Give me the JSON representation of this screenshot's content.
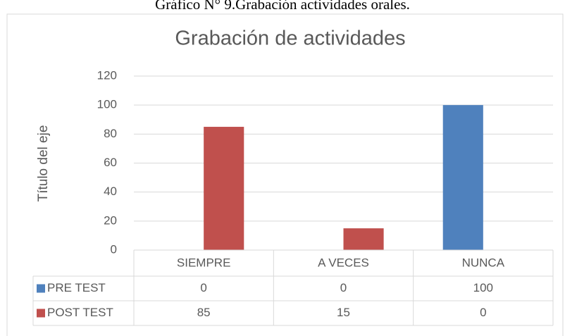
{
  "caption": "Gráfico N° 9.Grabación actividades orales.",
  "chart_data": {
    "type": "bar",
    "title": "Grabación de actividades",
    "y_label": "Título del eje",
    "categories": [
      "SIEMPRE",
      "A VECES",
      "NUNCA"
    ],
    "series": [
      {
        "name": "PRE TEST",
        "color": "#4f81bd",
        "values": [
          0,
          0,
          100
        ]
      },
      {
        "name": "POST TEST",
        "color": "#c0504d",
        "values": [
          85,
          15,
          0
        ]
      }
    ],
    "ylim": [
      0,
      120
    ],
    "yticks": [
      0,
      20,
      40,
      60,
      80,
      100,
      120
    ],
    "grid": true,
    "data_table": true
  }
}
